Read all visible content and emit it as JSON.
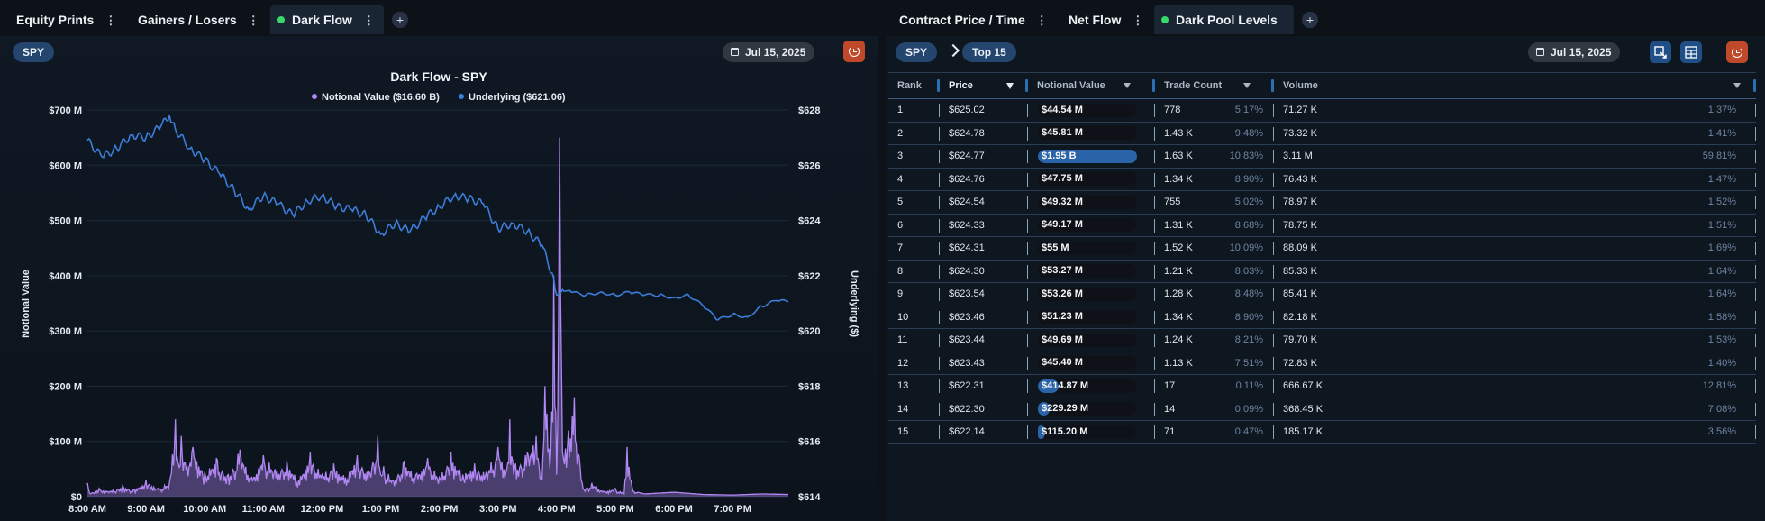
{
  "left_panel": {
    "tabs": [
      {
        "label": "Equity Prints",
        "active": false
      },
      {
        "label": "Gainers / Losers",
        "active": false
      },
      {
        "label": "Dark Flow",
        "active": true
      }
    ],
    "ticker": "SPY",
    "date": "Jul 15, 2025"
  },
  "right_panel": {
    "tabs": [
      {
        "label": "Contract Price / Time",
        "active": false
      },
      {
        "label": "Net Flow",
        "active": false
      },
      {
        "label": "Dark Pool Levels",
        "active": true
      }
    ],
    "ticker": "SPY",
    "scope": "Top 15",
    "date": "Jul 15, 2025",
    "table": {
      "columns": [
        "Rank",
        "Price",
        "Notional Value",
        "Trade Count",
        "Volume"
      ],
      "rows": [
        {
          "rank": "1",
          "price": "$625.02",
          "notional": "$44.54 M",
          "notional_share": 0.0228,
          "trades": "778",
          "trades_pct": "5.17%",
          "volume": "71.27 K",
          "volume_pct": "1.37%"
        },
        {
          "rank": "2",
          "price": "$624.78",
          "notional": "$45.81 M",
          "notional_share": 0.0235,
          "trades": "1.43 K",
          "trades_pct": "9.48%",
          "volume": "73.32 K",
          "volume_pct": "1.41%"
        },
        {
          "rank": "3",
          "price": "$624.77",
          "notional": "$1.95 B",
          "notional_share": 1.0,
          "trades": "1.63 K",
          "trades_pct": "10.83%",
          "volume": "3.11 M",
          "volume_pct": "59.81%"
        },
        {
          "rank": "4",
          "price": "$624.76",
          "notional": "$47.75 M",
          "notional_share": 0.0245,
          "trades": "1.34 K",
          "trades_pct": "8.90%",
          "volume": "76.43 K",
          "volume_pct": "1.47%"
        },
        {
          "rank": "5",
          "price": "$624.54",
          "notional": "$49.32 M",
          "notional_share": 0.0253,
          "trades": "755",
          "trades_pct": "5.02%",
          "volume": "78.97 K",
          "volume_pct": "1.52%"
        },
        {
          "rank": "6",
          "price": "$624.33",
          "notional": "$49.17 M",
          "notional_share": 0.0252,
          "trades": "1.31 K",
          "trades_pct": "8.68%",
          "volume": "78.75 K",
          "volume_pct": "1.51%"
        },
        {
          "rank": "7",
          "price": "$624.31",
          "notional": "$55 M",
          "notional_share": 0.0282,
          "trades": "1.52 K",
          "trades_pct": "10.09%",
          "volume": "88.09 K",
          "volume_pct": "1.69%"
        },
        {
          "rank": "8",
          "price": "$624.30",
          "notional": "$53.27 M",
          "notional_share": 0.0273,
          "trades": "1.21 K",
          "trades_pct": "8.03%",
          "volume": "85.33 K",
          "volume_pct": "1.64%"
        },
        {
          "rank": "9",
          "price": "$623.54",
          "notional": "$53.26 M",
          "notional_share": 0.0273,
          "trades": "1.28 K",
          "trades_pct": "8.48%",
          "volume": "85.41 K",
          "volume_pct": "1.64%"
        },
        {
          "rank": "10",
          "price": "$623.46",
          "notional": "$51.23 M",
          "notional_share": 0.0263,
          "trades": "1.34 K",
          "trades_pct": "8.90%",
          "volume": "82.18 K",
          "volume_pct": "1.58%"
        },
        {
          "rank": "11",
          "price": "$623.44",
          "notional": "$49.69 M",
          "notional_share": 0.0255,
          "trades": "1.24 K",
          "trades_pct": "8.21%",
          "volume": "79.70 K",
          "volume_pct": "1.53%"
        },
        {
          "rank": "12",
          "price": "$623.43",
          "notional": "$45.40 M",
          "notional_share": 0.0233,
          "trades": "1.13 K",
          "trades_pct": "7.51%",
          "volume": "72.83 K",
          "volume_pct": "1.40%"
        },
        {
          "rank": "13",
          "price": "$622.31",
          "notional": "$414.87 M",
          "notional_share": 0.2128,
          "trades": "17",
          "trades_pct": "0.11%",
          "volume": "666.67 K",
          "volume_pct": "12.81%"
        },
        {
          "rank": "14",
          "price": "$622.30",
          "notional": "$229.29 M",
          "notional_share": 0.1176,
          "trades": "14",
          "trades_pct": "0.09%",
          "volume": "368.45 K",
          "volume_pct": "7.08%"
        },
        {
          "rank": "15",
          "price": "$622.14",
          "notional": "$115.20 M",
          "notional_share": 0.0591,
          "trades": "71",
          "trades_pct": "0.47%",
          "volume": "185.17 K",
          "volume_pct": "3.56%"
        }
      ]
    }
  },
  "colors": {
    "notional": "#b187f3",
    "underlying": "#3b7dd8",
    "accent": "#24456e",
    "reset": "#c0482b"
  },
  "chart_data": {
    "type": "area+line",
    "title": "Dark Flow - SPY",
    "legend": [
      {
        "name": "Notional Value ($16.60 B)",
        "color": "#b187f3"
      },
      {
        "name": "Underlying ($621.06)",
        "color": "#3b7dd8"
      }
    ],
    "legend_position": "top-center",
    "ylabel_left": "Notional Value",
    "ylabel_right": "Underlying ($)",
    "y_left": {
      "min": 0,
      "max": 700,
      "unit": "M",
      "ticks": [
        "$0",
        "$100 M",
        "$200 M",
        "$300 M",
        "$400 M",
        "$500 M",
        "$600 M",
        "$700 M"
      ]
    },
    "y_right": {
      "min": 614,
      "max": 628,
      "ticks": [
        "$614",
        "$616",
        "$618",
        "$620",
        "$622",
        "$624",
        "$626",
        "$628"
      ]
    },
    "x_ticks": [
      "8:00 AM",
      "9:00 AM",
      "10:00 AM",
      "11:00 AM",
      "12:00 PM",
      "1:00 PM",
      "2:00 PM",
      "3:00 PM",
      "4:00 PM",
      "5:00 PM",
      "6:00 PM",
      "7:00 PM"
    ],
    "x_range_hours": [
      8,
      19.95
    ],
    "underlying_series": {
      "name": "Underlying",
      "x_hours": [
        8.0,
        8.25,
        8.5,
        8.75,
        9.0,
        9.25,
        9.4,
        9.5,
        9.75,
        10.0,
        10.25,
        10.5,
        10.75,
        11.0,
        11.25,
        11.5,
        11.75,
        12.0,
        12.25,
        12.5,
        12.75,
        13.0,
        13.25,
        13.5,
        13.75,
        14.0,
        14.25,
        14.5,
        14.75,
        15.0,
        15.25,
        15.5,
        15.75,
        15.95,
        16.0,
        16.1,
        16.25,
        16.5,
        16.75,
        17.0,
        17.25,
        17.5,
        17.75,
        18.0,
        18.25,
        18.5,
        18.75,
        19.0,
        19.25,
        19.5,
        19.75,
        19.95
      ],
      "values": [
        626.9,
        626.3,
        626.6,
        627.1,
        627.0,
        627.4,
        627.8,
        627.3,
        626.6,
        626.2,
        625.7,
        625.1,
        624.4,
        624.9,
        624.6,
        624.2,
        624.7,
        624.9,
        624.5,
        624.4,
        624.2,
        623.5,
        623.9,
        623.6,
        624.1,
        624.5,
        624.9,
        624.8,
        624.6,
        623.7,
        623.9,
        623.6,
        623.1,
        621.9,
        621.3,
        621.5,
        621.4,
        621.3,
        621.4,
        621.3,
        621.4,
        621.3,
        621.3,
        621.2,
        621.3,
        620.9,
        620.4,
        620.6,
        620.5,
        620.9,
        621.1,
        621.06
      ]
    },
    "notional_series": {
      "name": "Notional Value",
      "unit": "$M",
      "x_hours": [
        8.0,
        8.05,
        8.2,
        8.4,
        8.6,
        8.8,
        9.0,
        9.2,
        9.4,
        9.5,
        9.55,
        9.6,
        9.7,
        9.8,
        10.0,
        10.2,
        10.4,
        10.6,
        10.8,
        11.0,
        11.2,
        11.4,
        11.6,
        11.8,
        12.0,
        12.2,
        12.4,
        12.6,
        12.8,
        12.95,
        13.0,
        13.05,
        13.2,
        13.4,
        13.6,
        13.8,
        14.0,
        14.2,
        14.4,
        14.6,
        14.8,
        15.0,
        15.15,
        15.2,
        15.3,
        15.5,
        15.65,
        15.75,
        15.8,
        15.9,
        15.95,
        16.0,
        16.05,
        16.1,
        16.2,
        16.3,
        16.45,
        16.6,
        16.8,
        17.0,
        17.15,
        17.2,
        17.3,
        17.5,
        18.0,
        18.5,
        19.0,
        19.5,
        19.95
      ],
      "values": [
        25,
        5,
        15,
        10,
        20,
        12,
        30,
        15,
        25,
        140,
        60,
        110,
        55,
        90,
        45,
        70,
        40,
        85,
        35,
        75,
        50,
        65,
        30,
        80,
        40,
        60,
        35,
        75,
        45,
        110,
        40,
        55,
        30,
        65,
        40,
        70,
        35,
        80,
        40,
        60,
        45,
        90,
        50,
        140,
        60,
        80,
        110,
        30,
        200,
        80,
        400,
        40,
        650,
        80,
        120,
        180,
        15,
        25,
        10,
        15,
        5,
        90,
        10,
        5,
        8,
        4,
        3,
        5,
        4
      ]
    }
  }
}
